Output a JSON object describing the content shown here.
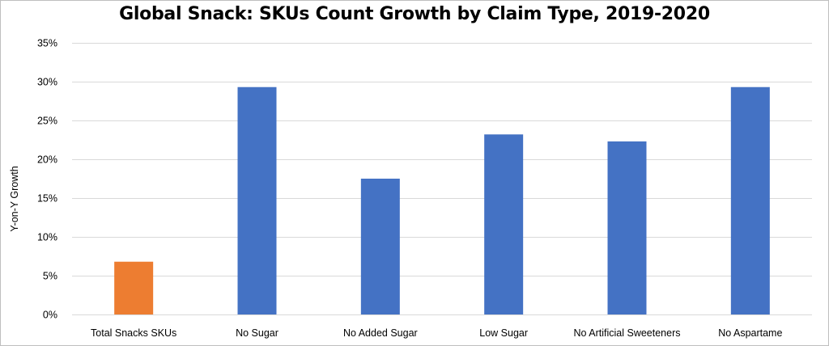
{
  "chart_data": {
    "type": "bar",
    "title": "Global Snack: SKUs Count Growth by Claim Type, 2019-2020",
    "xlabel": "",
    "ylabel": "Y-on-Y Growth",
    "categories": [
      "Total Snacks SKUs",
      "No Sugar",
      "No Added Sugar",
      "Low Sugar",
      "No Artificial Sweeteners",
      "No Aspartame"
    ],
    "values": [
      6.8,
      29.3,
      17.5,
      23.2,
      22.3,
      29.3
    ],
    "value_unit": "%",
    "bar_colors": [
      "#ed7d31",
      "#4472c4",
      "#4472c4",
      "#4472c4",
      "#4472c4",
      "#4472c4"
    ],
    "ylim": [
      0,
      35
    ],
    "yticks": [
      0,
      5,
      10,
      15,
      20,
      25,
      30,
      35
    ],
    "ytick_labels": [
      "0%",
      "5%",
      "10%",
      "15%",
      "20%",
      "25%",
      "30%",
      "35%"
    ],
    "grid": true,
    "gridline_color": "#d9d9d9",
    "legend": "none"
  }
}
